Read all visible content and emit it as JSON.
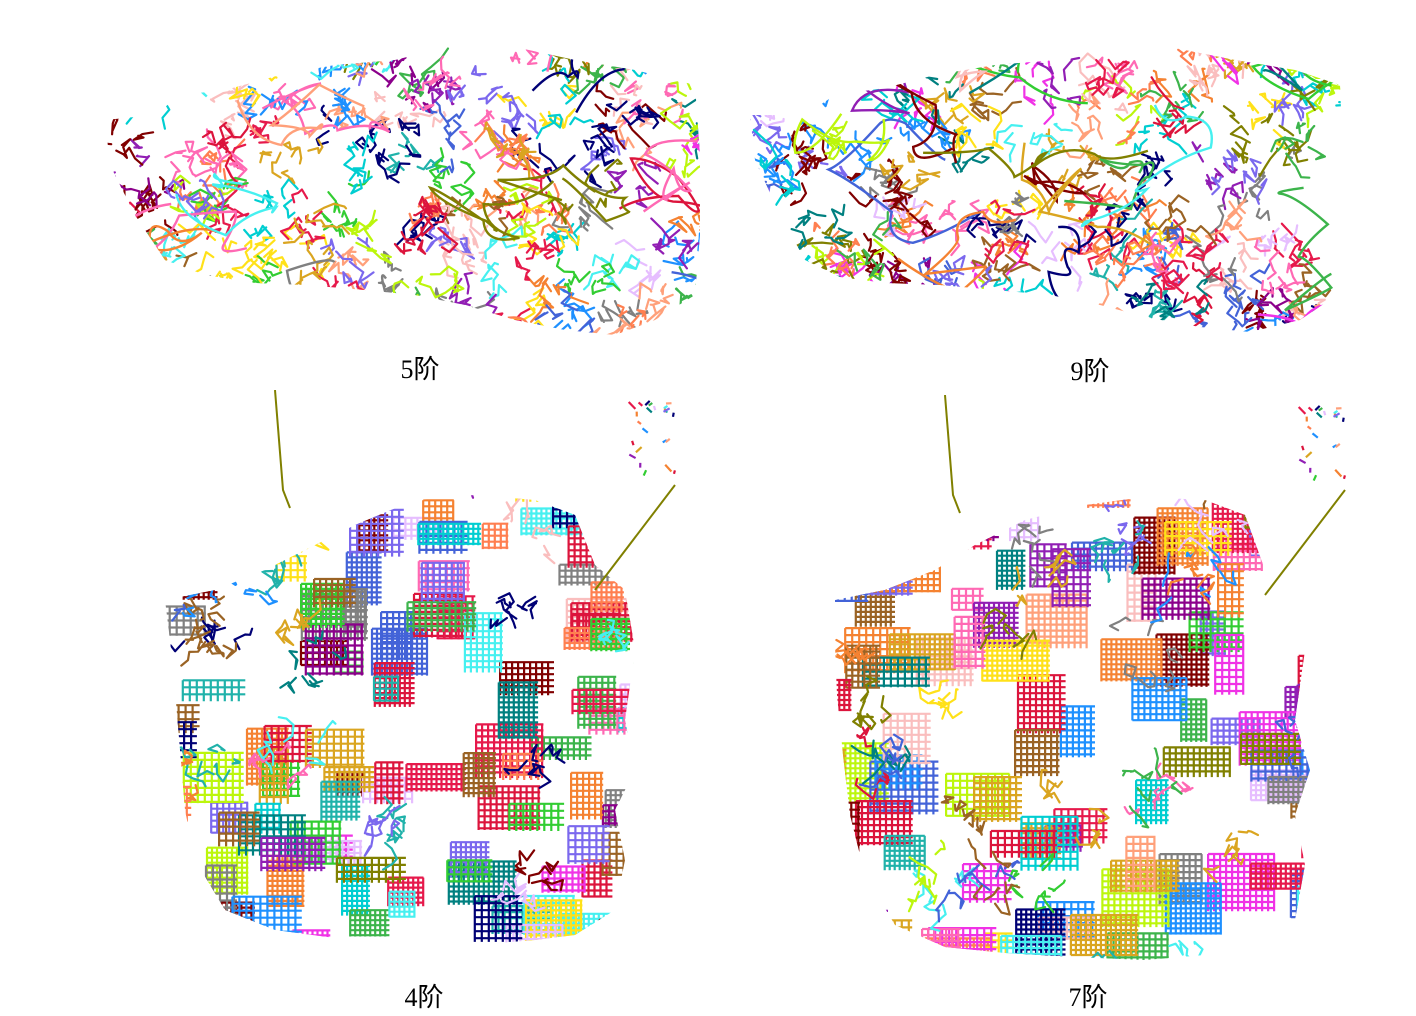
{
  "figure": {
    "panels": [
      {
        "id": "porto-5",
        "caption": "5阶"
      },
      {
        "id": "porto-9",
        "caption": "9阶"
      },
      {
        "id": "sf-4",
        "caption": "4阶"
      },
      {
        "id": "sf-7",
        "caption": "7阶"
      }
    ]
  },
  "palette": [
    "#e6194b",
    "#3cb44b",
    "#ffe119",
    "#4363d8",
    "#f58231",
    "#911eb4",
    "#46f0f0",
    "#f032e6",
    "#bcf60c",
    "#fabebe",
    "#008080",
    "#e6beff",
    "#9a6324",
    "#800000",
    "#808000",
    "#000075",
    "#808080",
    "#ff7f50",
    "#1e90ff",
    "#ff69b4",
    "#32cd32",
    "#daa520",
    "#8b008b",
    "#20b2aa",
    "#dc143c",
    "#7b68ee",
    "#ffa07a",
    "#00ced1"
  ]
}
